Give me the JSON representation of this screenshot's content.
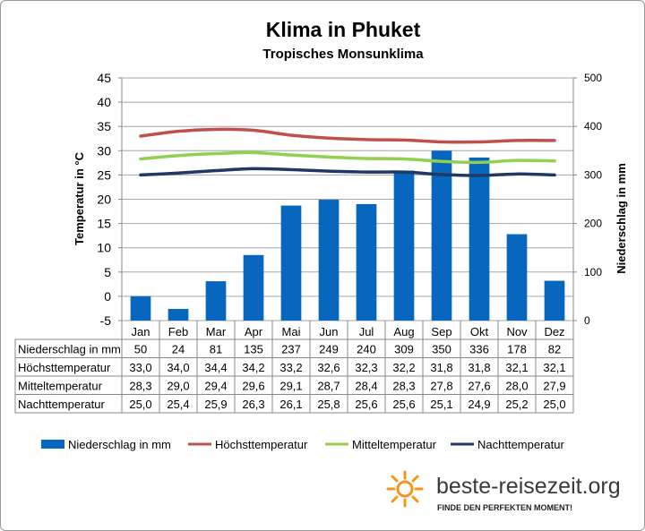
{
  "chart_data": {
    "type": "bar",
    "title": "Klima in Phuket",
    "subtitle": "Tropisches Monsunklima",
    "ylabel_left": "Temperatur in °C",
    "ylabel_right": "Niederschlag in mm",
    "ylim_left": [
      -5,
      45
    ],
    "yticks_left": [
      "45",
      "40",
      "35",
      "30",
      "25",
      "20",
      "15",
      "10",
      "5",
      "0",
      "-5"
    ],
    "ylim_right": [
      0,
      500
    ],
    "yticks_right": [
      "500",
      "400",
      "300",
      "200",
      "100",
      "0"
    ],
    "grid": true,
    "legend_position": "bottom",
    "categories": [
      "Jan",
      "Feb",
      "Mar",
      "Apr",
      "Mai",
      "Jun",
      "Jul",
      "Aug",
      "Sep",
      "Okt",
      "Nov",
      "Dez"
    ],
    "series": [
      {
        "name": "Niederschlag in mm",
        "type": "bar",
        "axis": "right",
        "color": "#0766bd",
        "values": [
          50,
          24,
          81,
          135,
          237,
          249,
          240,
          309,
          350,
          336,
          178,
          82
        ],
        "labels": [
          "50",
          "24",
          "81",
          "135",
          "237",
          "249",
          "240",
          "309",
          "350",
          "336",
          "178",
          "82"
        ]
      },
      {
        "name": "Höchsttemperatur",
        "type": "line",
        "axis": "left",
        "color": "#c0504d",
        "values": [
          33.0,
          34.0,
          34.4,
          34.2,
          33.2,
          32.6,
          32.3,
          32.2,
          31.8,
          31.8,
          32.1,
          32.1
        ],
        "labels": [
          "33,0",
          "34,0",
          "34,4",
          "34,2",
          "33,2",
          "32,6",
          "32,3",
          "32,2",
          "31,8",
          "31,8",
          "32,1",
          "32,1"
        ]
      },
      {
        "name": "Mitteltemperatur",
        "type": "line",
        "axis": "left",
        "color": "#92d050",
        "values": [
          28.3,
          29.0,
          29.4,
          29.6,
          29.1,
          28.7,
          28.4,
          28.3,
          27.8,
          27.6,
          28.0,
          27.9
        ],
        "labels": [
          "28,3",
          "29,0",
          "29,4",
          "29,6",
          "29,1",
          "28,7",
          "28,4",
          "28,3",
          "27,8",
          "27,6",
          "28,0",
          "27,9"
        ]
      },
      {
        "name": "Nachttemperatur",
        "type": "line",
        "axis": "left",
        "color": "#1f3864",
        "values": [
          25.0,
          25.4,
          25.9,
          26.3,
          26.1,
          25.8,
          25.6,
          25.6,
          25.1,
          24.9,
          25.2,
          25.0
        ],
        "labels": [
          "25,0",
          "25,4",
          "25,9",
          "26,3",
          "26,1",
          "25,8",
          "25,6",
          "25,6",
          "25,1",
          "24,9",
          "25,2",
          "25,0"
        ]
      }
    ]
  },
  "branding": {
    "site": "beste-reisezeit.org",
    "tagline": "FINDE DEN PERFEKTEN MOMENT!",
    "logo_color": "#f7941d"
  }
}
